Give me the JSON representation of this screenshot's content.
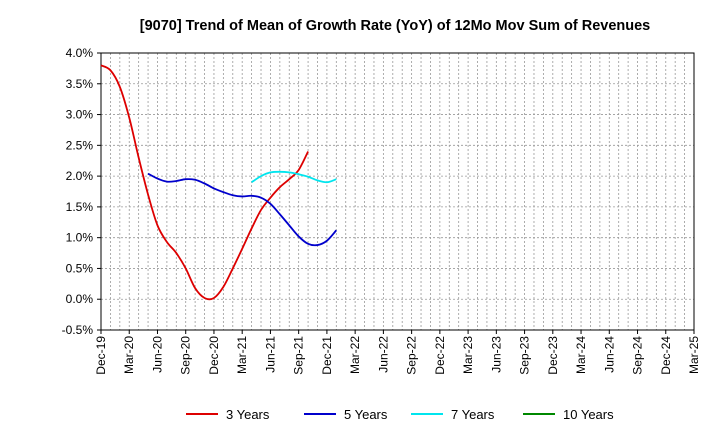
{
  "chart_data": {
    "type": "line",
    "title": "[9070]  Trend of Mean of Growth Rate (YoY) of 12Mo Mov Sum of Revenues",
    "xlabel": "",
    "ylabel": "",
    "x_ticks": [
      "Dec-19",
      "Mar-20",
      "Jun-20",
      "Sep-20",
      "Dec-20",
      "Mar-21",
      "Jun-21",
      "Sep-21",
      "Dec-21",
      "Mar-22",
      "Jun-22",
      "Sep-22",
      "Dec-22",
      "Mar-23",
      "Jun-23",
      "Sep-23",
      "Dec-23",
      "Mar-24",
      "Jun-24",
      "Sep-24",
      "Dec-24",
      "Mar-25"
    ],
    "y_ticks": [
      "-0.5%",
      "0.0%",
      "0.5%",
      "1.0%",
      "1.5%",
      "2.0%",
      "2.5%",
      "3.0%",
      "3.5%",
      "4.0%"
    ],
    "ylim": [
      -0.5,
      4.0
    ],
    "grid": true,
    "legend_position": "bottom",
    "series": [
      {
        "name": "3 Years",
        "color": "#dd0000",
        "points": [
          [
            0,
            3.8
          ],
          [
            1,
            3.72
          ],
          [
            2,
            3.45
          ],
          [
            3,
            2.95
          ],
          [
            4,
            2.3
          ],
          [
            5,
            1.7
          ],
          [
            6,
            1.2
          ],
          [
            7,
            0.93
          ],
          [
            8,
            0.75
          ],
          [
            9,
            0.5
          ],
          [
            10,
            0.18
          ],
          [
            11,
            0.02
          ],
          [
            12,
            0.02
          ],
          [
            13,
            0.2
          ],
          [
            14,
            0.5
          ],
          [
            15,
            0.82
          ],
          [
            16,
            1.15
          ],
          [
            17,
            1.45
          ],
          [
            18,
            1.65
          ],
          [
            19,
            1.82
          ],
          [
            20,
            1.95
          ],
          [
            21,
            2.1
          ],
          [
            22,
            2.4
          ]
        ]
      },
      {
        "name": "5 Years",
        "color": "#0000cc",
        "points": [
          [
            5,
            2.04
          ],
          [
            6,
            1.96
          ],
          [
            7,
            1.91
          ],
          [
            8,
            1.92
          ],
          [
            9,
            1.95
          ],
          [
            10,
            1.94
          ],
          [
            11,
            1.88
          ],
          [
            12,
            1.8
          ],
          [
            13,
            1.74
          ],
          [
            14,
            1.69
          ],
          [
            15,
            1.67
          ],
          [
            16,
            1.68
          ],
          [
            17,
            1.65
          ],
          [
            18,
            1.55
          ],
          [
            19,
            1.38
          ],
          [
            20,
            1.2
          ],
          [
            21,
            1.02
          ],
          [
            22,
            0.9
          ],
          [
            23,
            0.88
          ],
          [
            24,
            0.95
          ],
          [
            25,
            1.12
          ]
        ]
      },
      {
        "name": "7 Years",
        "color": "#00e5ee",
        "points": [
          [
            16,
            1.9
          ],
          [
            17,
            2.0
          ],
          [
            18,
            2.06
          ],
          [
            19,
            2.07
          ],
          [
            20,
            2.06
          ],
          [
            21,
            2.03
          ],
          [
            22,
            1.99
          ],
          [
            23,
            1.93
          ],
          [
            24,
            1.9
          ],
          [
            25,
            1.95
          ]
        ]
      },
      {
        "name": "10 Years",
        "color": "#008800",
        "points": []
      }
    ]
  }
}
